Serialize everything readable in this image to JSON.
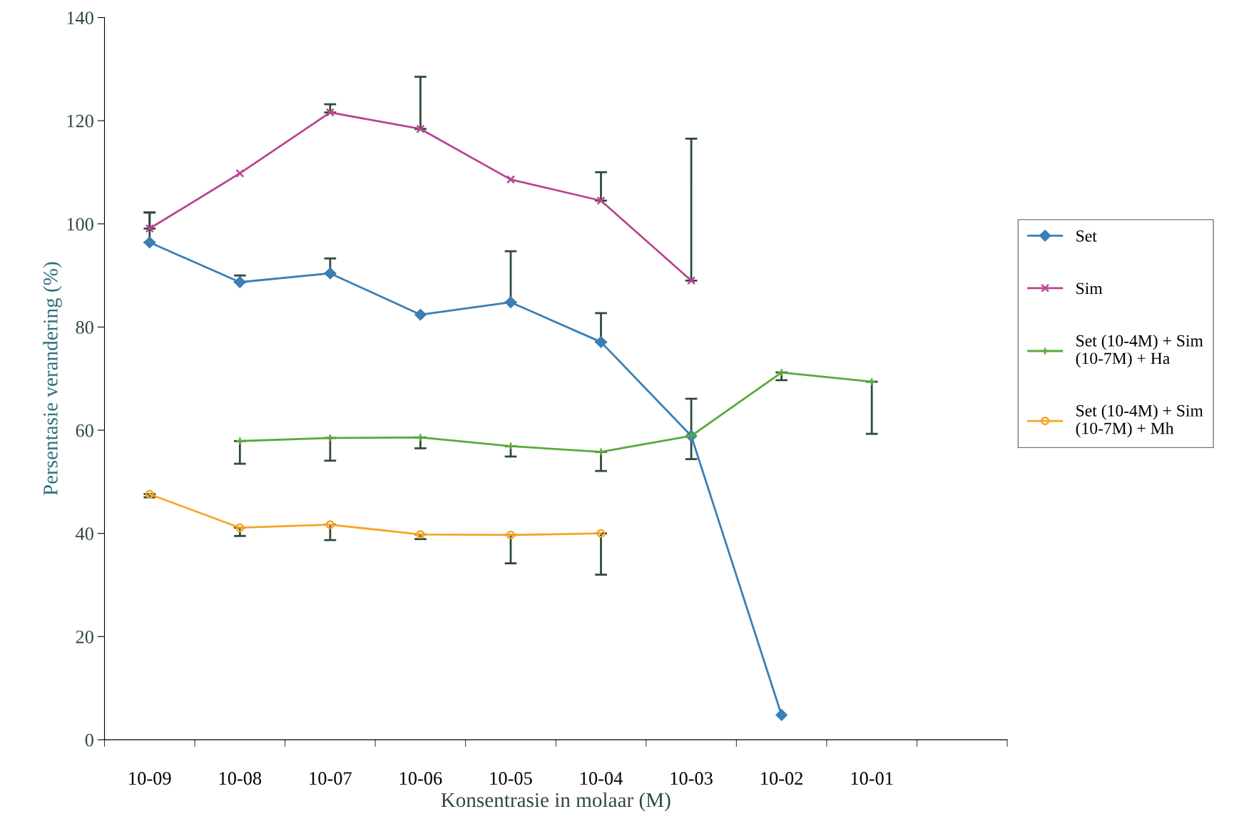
{
  "chart_data": {
    "type": "line",
    "xlabel": "Konsentrasie in molaar (M)",
    "ylabel": "Persentasie verandering (%)",
    "categories": [
      "10-09",
      "10-08",
      "10-07",
      "10-06",
      "10-05",
      "10-04",
      "10-03",
      "10-02",
      "10-01",
      null
    ],
    "ylim": [
      0,
      140
    ],
    "yticks": [
      0,
      20,
      40,
      60,
      80,
      100,
      120,
      140
    ],
    "grid": false,
    "legend": "right",
    "series": [
      {
        "name": "Set",
        "color": "#3a7fb5",
        "marker": "diamond",
        "values": [
          96.4,
          88.7,
          90.4,
          82.4,
          84.8,
          77.1,
          58.9,
          4.8,
          null,
          null
        ],
        "errors": [
          [
            96.4,
            102.2
          ],
          [
            88.7,
            90.0
          ],
          [
            90.4,
            93.3
          ],
          null,
          [
            84.8,
            94.7
          ],
          [
            77.1,
            82.7
          ],
          null,
          null,
          null,
          null
        ]
      },
      {
        "name": "Sim",
        "color": "#b8458f",
        "marker": "cross",
        "values": [
          99.1,
          109.8,
          121.6,
          118.4,
          108.6,
          104.5,
          89.0,
          null,
          null,
          null
        ],
        "errors": [
          [
            99.1,
            102.2
          ],
          null,
          [
            121.6,
            123.2
          ],
          [
            118.4,
            128.5
          ],
          null,
          [
            104.5,
            110.0
          ],
          [
            89.0,
            116.5
          ],
          null,
          null,
          null
        ]
      },
      {
        "name": "Set (10-4M) + Sim (10-7M) + Ha",
        "color": "#5aaa3a",
        "marker": "plus",
        "values": [
          null,
          57.9,
          58.5,
          58.6,
          56.9,
          55.8,
          58.9,
          71.2,
          69.4,
          null
        ],
        "errors": [
          null,
          [
            53.5,
            57.9
          ],
          [
            54.1,
            58.5
          ],
          [
            56.5,
            58.6
          ],
          [
            54.9,
            56.9
          ],
          [
            52.1,
            55.8
          ],
          [
            54.4,
            66.1
          ],
          [
            69.7,
            71.2
          ],
          [
            59.3,
            69.4
          ],
          null
        ]
      },
      {
        "name": "Set (10-4M) + Sim (10-7M) + Mh",
        "color": "#f5a623",
        "marker": "circle",
        "values": [
          47.6,
          41.1,
          41.7,
          39.8,
          39.7,
          40.0,
          null,
          null,
          null,
          null
        ],
        "errors": [
          [
            47.0,
            47.6
          ],
          [
            39.5,
            41.1
          ],
          [
            38.7,
            41.7
          ],
          [
            38.9,
            39.8
          ],
          [
            34.2,
            39.7
          ],
          [
            32.0,
            40.0
          ],
          null,
          null,
          null,
          null
        ]
      }
    ]
  }
}
